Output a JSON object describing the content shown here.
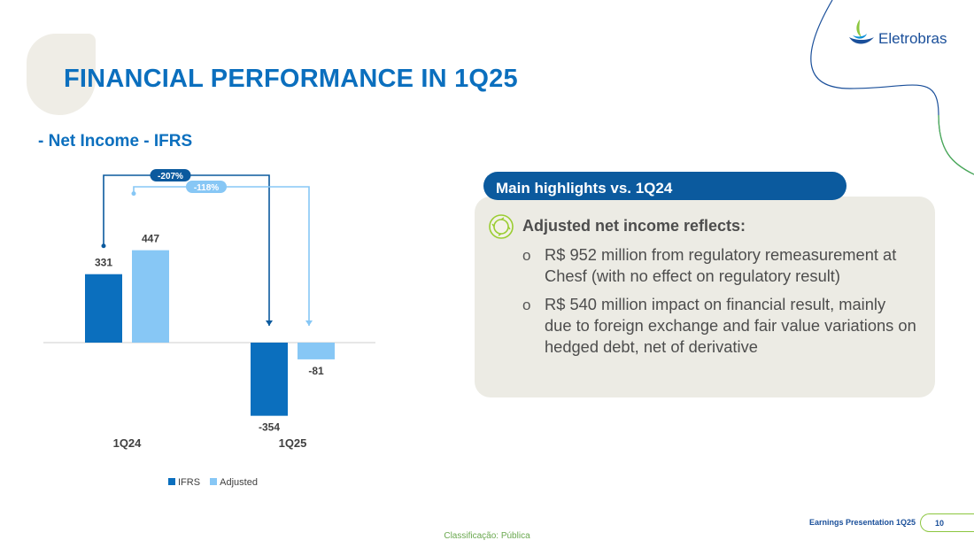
{
  "header": {
    "title": "FINANCIAL PERFORMANCE IN 1Q25",
    "subtitle": "- Net Income - IFRS",
    "logo_text": "Eletrobras"
  },
  "chart_data": {
    "type": "bar",
    "categories": [
      "1Q24",
      "1Q25"
    ],
    "series": [
      {
        "name": "IFRS",
        "color": "#0b6fbe",
        "values": [
          331,
          -354
        ]
      },
      {
        "name": "Adjusted",
        "color": "#87c7f5",
        "values": [
          447,
          -81
        ]
      }
    ],
    "value_labels": [
      [
        "331",
        "-354"
      ],
      [
        "447",
        "-81"
      ]
    ],
    "variations": [
      {
        "series": "IFRS",
        "label": "-207%",
        "color": "#0b5a9e"
      },
      {
        "series": "Adjusted",
        "label": "-118%",
        "color": "#87c7f5"
      }
    ],
    "legend": [
      "IFRS",
      "Adjusted"
    ],
    "legend_position": "bottom",
    "title": "",
    "xlabel": "",
    "ylabel": "",
    "ylim": [
      -354,
      447
    ]
  },
  "highlights": {
    "header": "Main highlights vs. 1Q24",
    "heading": "Adjusted net income reflects:",
    "bullet_marker": "o",
    "bullets": [
      "R$ 952 million from regulatory remeasurement at Chesf (with no effect on regulatory result)",
      "R$ 540 million impact on financial result, mainly due to foreign exchange and fair value variations on hedged debt, net of derivative"
    ]
  },
  "footer": {
    "presentation": "Earnings Presentation 1Q25",
    "page": "10",
    "classification": "Classificação: Pública"
  },
  "colors": {
    "brand_blue": "#0b6fbe",
    "dark_blue": "#0b5a9e",
    "light_blue": "#87c7f5",
    "green": "#8cc63f",
    "card_bg": "#ecebe4"
  }
}
